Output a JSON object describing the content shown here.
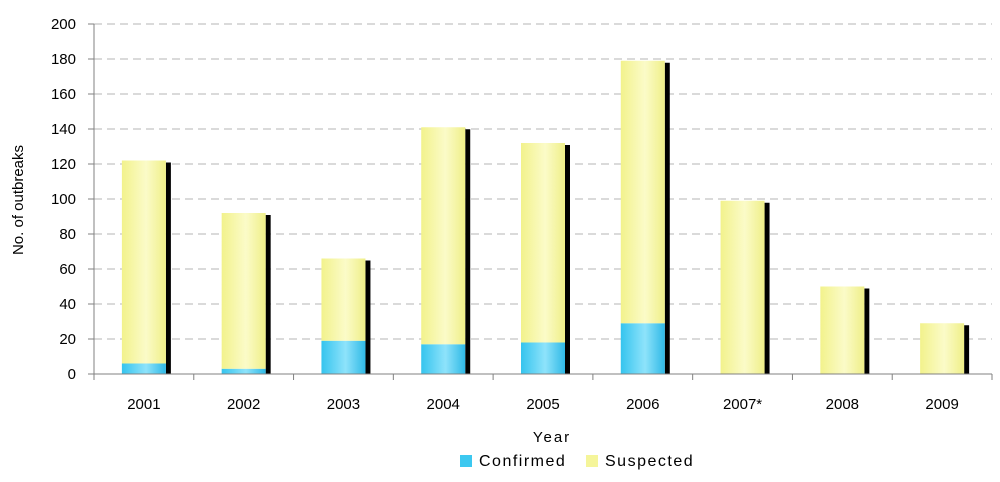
{
  "chart_data": {
    "type": "bar",
    "stacked": true,
    "categories": [
      "2001",
      "2002",
      "2003",
      "2004",
      "2005",
      "2006",
      "2007*",
      "2008",
      "2009"
    ],
    "series": [
      {
        "name": "Confirmed",
        "values": [
          6,
          3,
          19,
          17,
          18,
          29,
          0,
          0,
          0
        ],
        "color": "#3cc8f0"
      },
      {
        "name": "Suspected",
        "values": [
          116,
          89,
          47,
          124,
          114,
          150,
          99,
          50,
          29
        ],
        "color": "#f5f59a"
      }
    ],
    "title": "",
    "xlabel": "Year",
    "ylabel": "No. of outbreaks",
    "ylim": [
      0,
      200
    ],
    "yticks": [
      0,
      20,
      40,
      60,
      80,
      100,
      120,
      140,
      160,
      180,
      200
    ],
    "grid": true,
    "legend_position": "bottom-center"
  }
}
